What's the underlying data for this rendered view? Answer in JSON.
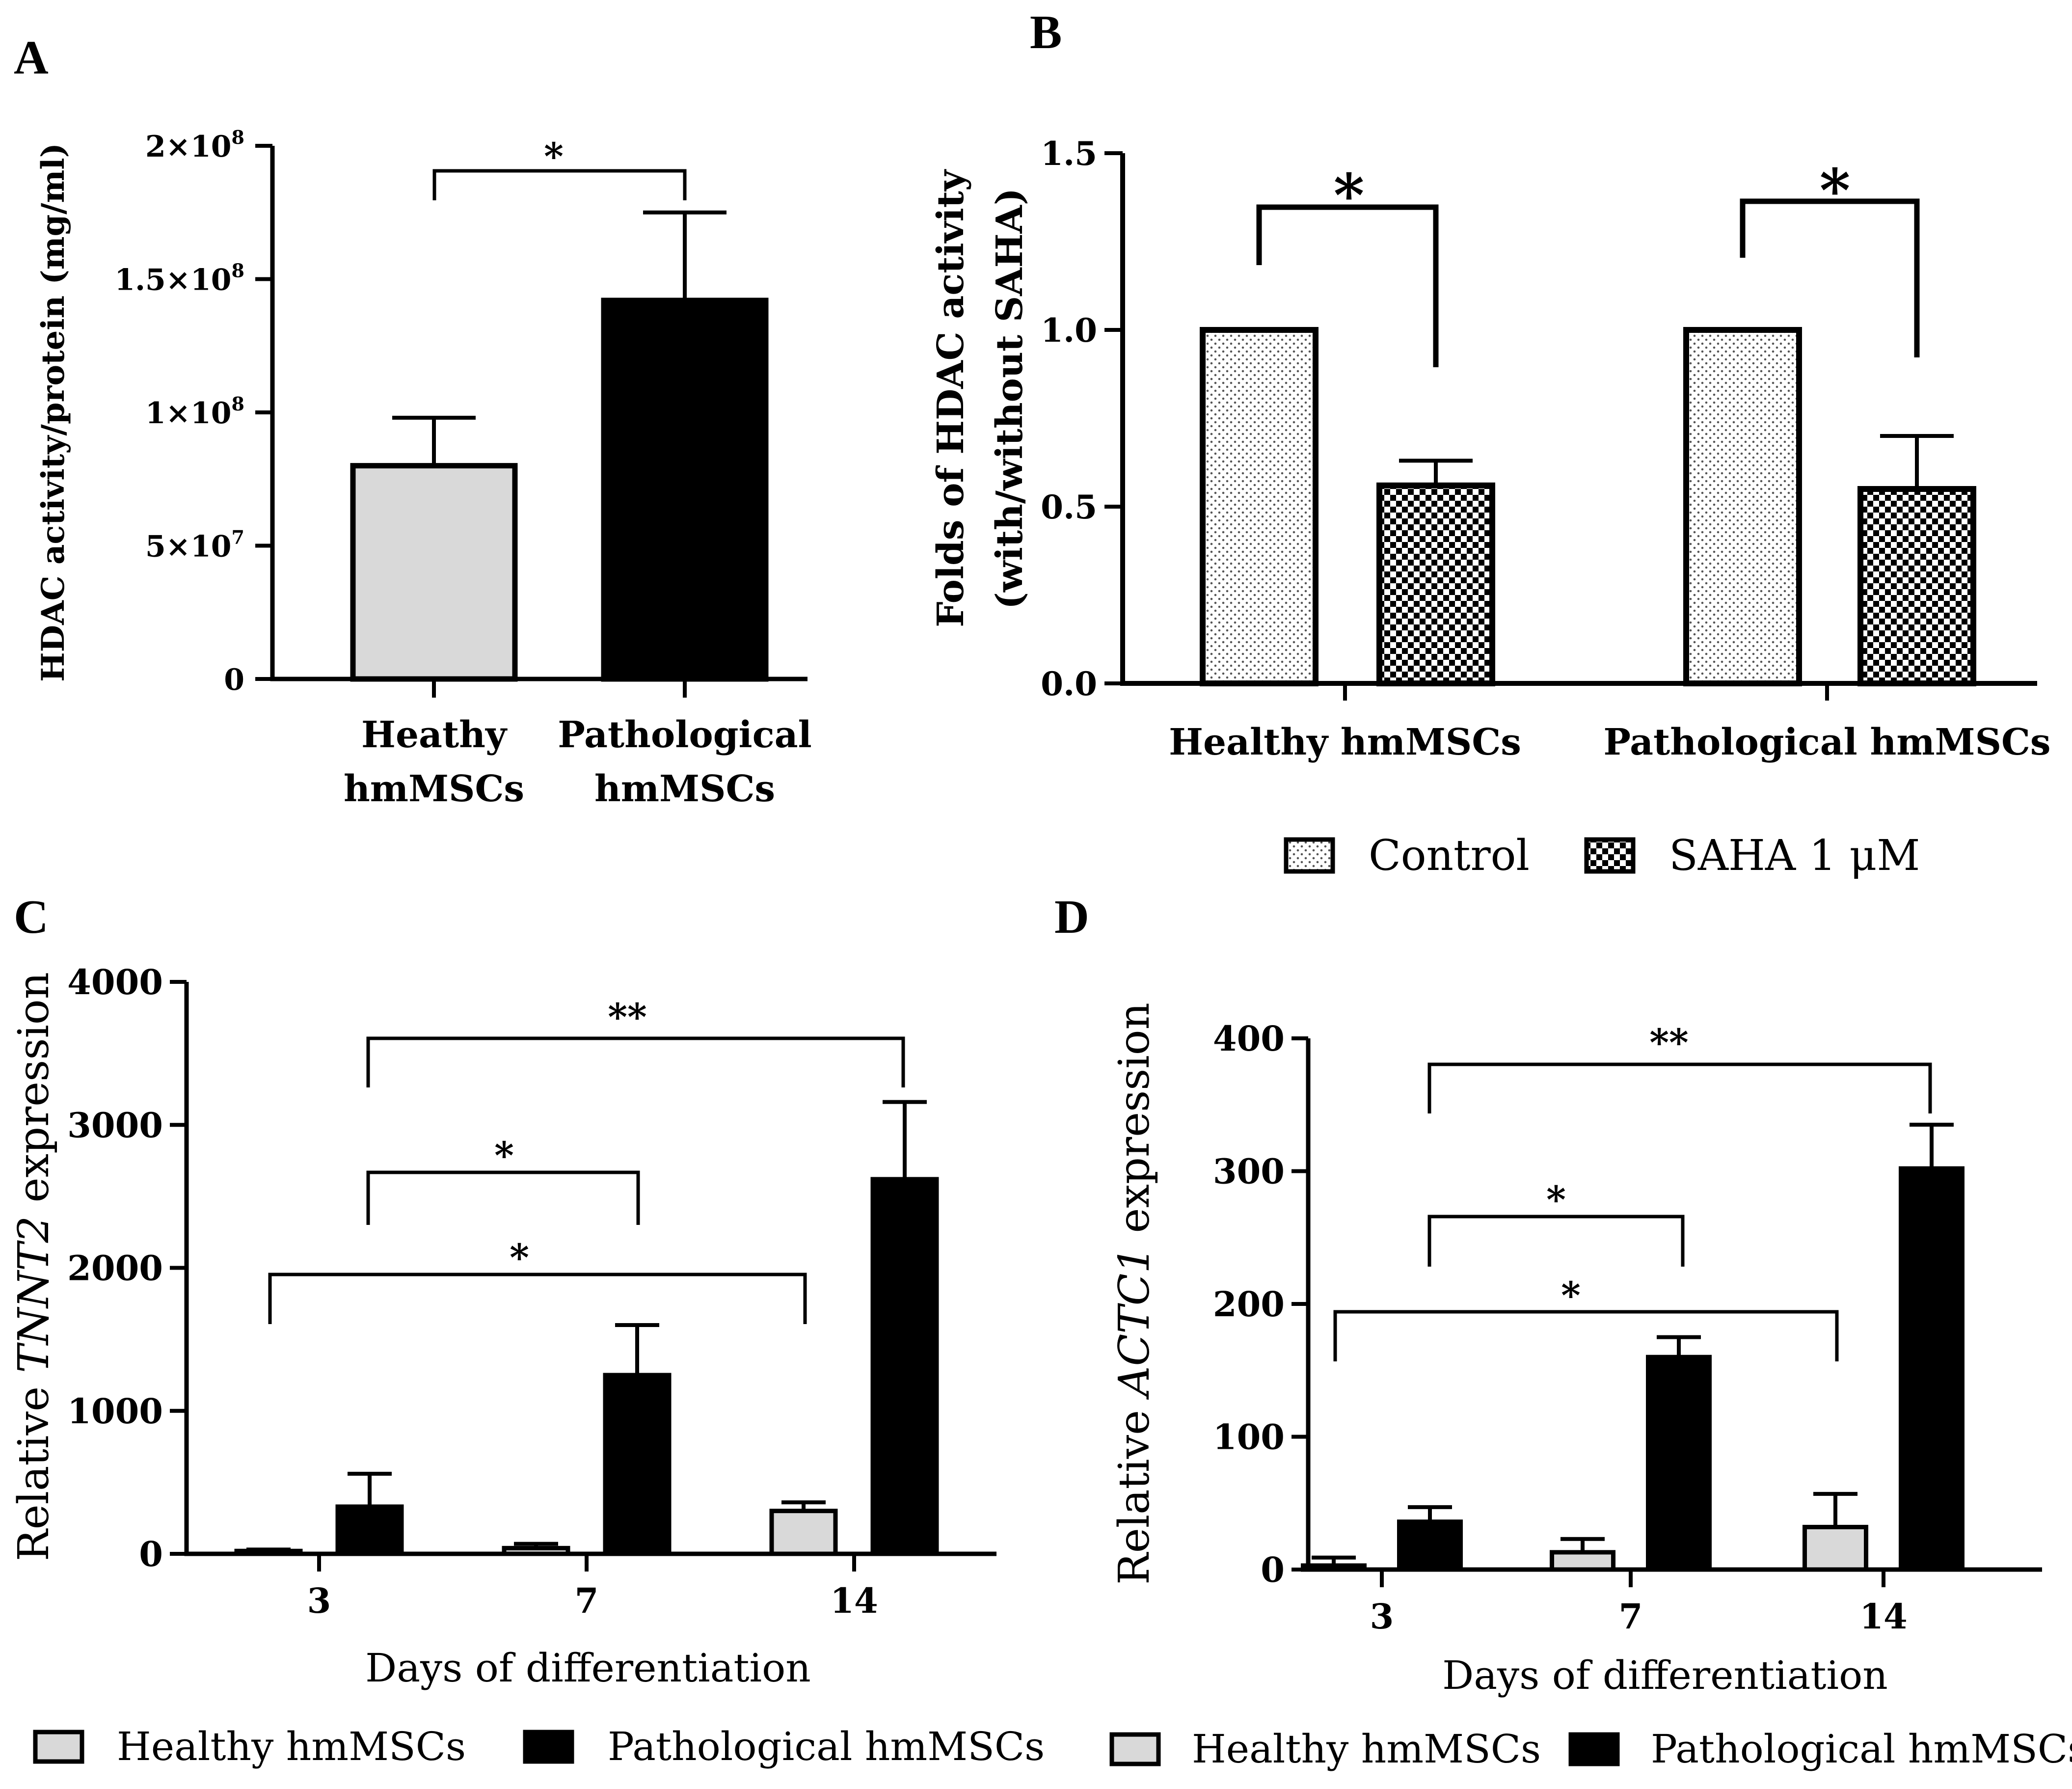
{
  "panels": {
    "A": {
      "letter": "A"
    },
    "B": {
      "letter": "B"
    },
    "C": {
      "letter": "C"
    },
    "D": {
      "letter": "D"
    }
  },
  "chart_data": [
    {
      "id": "A",
      "type": "bar",
      "ylabel": "HDAC activity/protein (mg/ml)",
      "ylim": [
        0,
        200000000
      ],
      "yticks": [
        {
          "value": 0,
          "base": "0",
          "exp": ""
        },
        {
          "value": 50000000,
          "base": "5×10",
          "exp": "7"
        },
        {
          "value": 100000000,
          "base": "1×10",
          "exp": "8"
        },
        {
          "value": 150000000,
          "base": "1.5×10",
          "exp": "8"
        },
        {
          "value": 200000000,
          "base": "2×10",
          "exp": "8"
        }
      ],
      "categories": [
        [
          "Heathy",
          "hmMSCs"
        ],
        [
          "Pathological",
          "hmMSCs"
        ]
      ],
      "values": [
        80000000,
        142000000
      ],
      "errors": [
        18000000,
        33000000
      ],
      "colors": [
        "#d9d9d9",
        "#000000"
      ],
      "significance": [
        {
          "from": 0,
          "to": 1,
          "label": "*"
        }
      ]
    },
    {
      "id": "B",
      "type": "bar",
      "ylabel": [
        "Folds of HDAC activity",
        "(with/without SAHA)"
      ],
      "ylim": [
        0,
        1.5
      ],
      "yticks": [
        "0.0",
        "0.5",
        "1.0",
        "1.5"
      ],
      "categories": [
        "Healthy hmMSCs",
        "Pathological hmMSCs"
      ],
      "series": [
        {
          "name": "Control",
          "values": [
            1.0,
            1.0
          ],
          "errors": [
            0,
            0
          ],
          "pattern": "dots"
        },
        {
          "name": "SAHA 1 μM",
          "values": [
            0.56,
            0.55
          ],
          "errors": [
            0.07,
            0.15
          ],
          "pattern": "checker"
        }
      ],
      "significance": [
        {
          "group": 0,
          "label": "*"
        },
        {
          "group": 1,
          "label": "*"
        }
      ]
    },
    {
      "id": "C",
      "type": "bar",
      "ylabel_prefix": "Relative ",
      "ylabel_gene": "TNNT2",
      "ylabel_suffix": " expression",
      "xlabel": "Days of differentiation",
      "ylim": [
        0,
        4000
      ],
      "yticks": [
        "0",
        "1000",
        "2000",
        "3000",
        "4000"
      ],
      "categories": [
        "3",
        "7",
        "14"
      ],
      "series": [
        {
          "name": "Healthy hmMSCs",
          "values": [
            20,
            40,
            300
          ],
          "errors": [
            10,
            30,
            60
          ],
          "color": "#d9d9d9"
        },
        {
          "name": "Pathological hmMSCs",
          "values": [
            330,
            1250,
            2620
          ],
          "errors": [
            230,
            350,
            540
          ],
          "color": "#000000"
        }
      ],
      "significance": [
        {
          "label": "**",
          "from": "Pathological hmMSCs day 3",
          "to": "Pathological hmMSCs day 14"
        },
        {
          "label": "*",
          "from": "Pathological hmMSCs day 3",
          "to": "Pathological hmMSCs day 7"
        },
        {
          "label": "*",
          "from": "Healthy hmMSCs day 3",
          "to": "Healthy hmMSCs day 14"
        }
      ]
    },
    {
      "id": "D",
      "type": "bar",
      "ylabel_prefix": "Relative ",
      "ylabel_gene": "ACTC1",
      "ylabel_suffix": " expression",
      "xlabel": "Days of differentiation",
      "ylim": [
        0,
        400
      ],
      "yticks": [
        "0",
        "100",
        "200",
        "300",
        "400"
      ],
      "categories": [
        "3",
        "7",
        "14"
      ],
      "series": [
        {
          "name": "Healthy hmMSCs",
          "values": [
            3,
            13,
            32
          ],
          "errors": [
            6,
            10,
            25
          ],
          "color": "#d9d9d9"
        },
        {
          "name": "Pathological hmMSCs",
          "values": [
            36,
            160,
            302
          ],
          "errors": [
            11,
            15,
            33
          ],
          "color": "#000000"
        }
      ],
      "significance": [
        {
          "label": "**",
          "from": "Pathological hmMSCs day 3",
          "to": "Pathological hmMSCs day 14"
        },
        {
          "label": "*",
          "from": "Pathological hmMSCs day 3",
          "to": "Pathological hmMSCs day 7"
        },
        {
          "label": "*",
          "from": "Healthy hmMSCs day 3",
          "to": "Healthy hmMSCs day 14"
        }
      ]
    }
  ]
}
